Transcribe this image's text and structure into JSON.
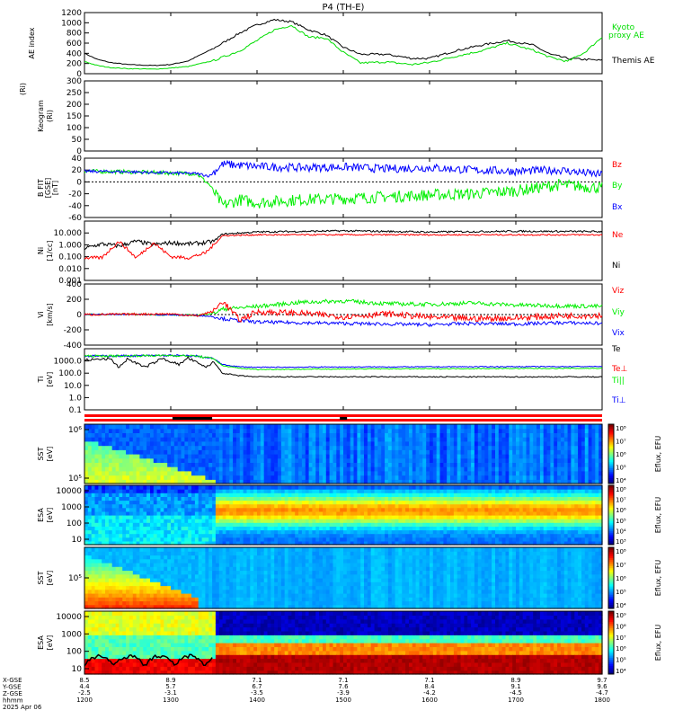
{
  "chart_data": {
    "type": "line",
    "title": "P4 (TH-E)",
    "x": {
      "tick_labels": [
        "1200",
        "1300",
        "1400",
        "1500",
        "1600",
        "1700",
        "1800"
      ],
      "ephemeris_labels": [
        "X-GSE",
        "Y-GSE",
        "Z-GSE",
        "hhmm",
        "2025 Apr 06"
      ],
      "xgse": [
        "8.5",
        "8.9",
        "7.1",
        "7.1",
        "7.1",
        "8.9",
        "9.7"
      ],
      "ygse": [
        "4.4",
        "5.7",
        "6.7",
        "7.6",
        "8.4",
        "9.1",
        "9.6"
      ],
      "zgse": [
        "-2.5",
        "-3.1",
        "-3.5",
        "-3.9",
        "-4.2",
        "-4.5",
        "-4.7"
      ]
    },
    "panels": [
      {
        "id": "ae",
        "ylabel": "AE index",
        "ylim": [
          0,
          1200
        ],
        "yticks": [
          "0",
          "200",
          "400",
          "600",
          "800",
          "1000",
          "1200"
        ],
        "series": [
          {
            "name": "Themis AE",
            "color": "#000000",
            "t": [
              0,
              0.15,
              0.3,
              0.5,
              0.8,
              1.0,
              1.2,
              1.5,
              1.8,
              2.0,
              2.2,
              2.4,
              2.6,
              2.8,
              3.0,
              3.2,
              3.5,
              3.8,
              4.0,
              4.3,
              4.6,
              4.9,
              5.2,
              5.4,
              5.6,
              5.8,
              6.0
            ],
            "values": [
              400,
              280,
              220,
              180,
              160,
              180,
              250,
              500,
              800,
              960,
              1060,
              1020,
              860,
              760,
              520,
              380,
              380,
              300,
              300,
              450,
              560,
              650,
              560,
              380,
              300,
              280,
              260
            ]
          },
          {
            "name": "Kyoto proxy AE",
            "color": "#00dd00",
            "t": [
              0,
              0.15,
              0.3,
              0.5,
              0.8,
              1.0,
              1.2,
              1.5,
              1.8,
              2.0,
              2.2,
              2.4,
              2.6,
              2.8,
              3.0,
              3.2,
              3.5,
              3.8,
              4.0,
              4.3,
              4.6,
              4.9,
              5.2,
              5.4,
              5.6,
              5.8,
              6.0
            ],
            "values": [
              240,
              160,
              120,
              100,
              90,
              110,
              140,
              260,
              450,
              650,
              860,
              950,
              720,
              700,
              420,
              210,
              230,
              180,
              220,
              340,
              450,
              600,
              460,
              320,
              240,
              420,
              720
            ]
          }
        ]
      },
      {
        "id": "keogram",
        "ylabel": "Keogram",
        "ylabel2": "(Ri)",
        "ylim": [
          0,
          300
        ],
        "yticks": [
          "0",
          "50",
          "100",
          "150",
          "200",
          "250",
          "300"
        ]
      },
      {
        "id": "bfield",
        "ylabel": "B FIT",
        "ylabel2": "[GSE]",
        "ylabel3": "[nT]",
        "ylim": [
          -60,
          40
        ],
        "yticks": [
          "-60",
          "-40",
          "-20",
          "0",
          "20",
          "40"
        ],
        "series": [
          {
            "name": "Bz",
            "color": "#ff0000",
            "t": [],
            "values": []
          },
          {
            "name": "By",
            "color": "#00ee00",
            "t": [
              0,
              0.5,
              1.0,
              1.3,
              1.45,
              1.6,
              1.8,
              2.0,
              2.5,
              3.0,
              3.5,
              4.0,
              4.5,
              5.0,
              5.5,
              6.0
            ],
            "values": [
              18,
              17,
              15,
              14,
              -5,
              -40,
              -30,
              -35,
              -30,
              -28,
              -25,
              -22,
              -20,
              -15,
              -5,
              -10
            ]
          },
          {
            "name": "Bx",
            "color": "#0000ff",
            "t": [
              0,
              0.5,
              1.0,
              1.3,
              1.45,
              1.6,
              1.8,
              2.0,
              2.5,
              3.0,
              3.5,
              4.0,
              4.5,
              5.0,
              5.5,
              6.0
            ],
            "values": [
              18,
              17,
              15,
              14,
              10,
              30,
              28,
              26,
              24,
              25,
              22,
              24,
              20,
              18,
              20,
              12
            ]
          }
        ]
      },
      {
        "id": "density",
        "ylabel": "Ni",
        "ylabel2": "[1/cc]",
        "ylim": [
          0.001,
          100
        ],
        "log": true,
        "yticks": [
          "0.001",
          "0.010",
          "0.100",
          "1.000",
          "10.000"
        ],
        "series": [
          {
            "name": "Ne",
            "color": "#ff0000",
            "t": [
              0,
              0.2,
              0.4,
              0.6,
              0.8,
              1.0,
              1.2,
              1.4,
              1.5,
              1.6,
              2.0,
              3.0,
              4.0,
              5.0,
              6.0
            ],
            "values": [
              0.08,
              0.08,
              2.0,
              0.08,
              1.5,
              0.1,
              0.08,
              0.2,
              1.0,
              6.0,
              7.0,
              7.0,
              7.0,
              7.0,
              7.0
            ]
          },
          {
            "name": "Ni",
            "color": "#000000",
            "t": [
              0,
              0.2,
              0.4,
              0.6,
              0.8,
              1.0,
              1.2,
              1.4,
              1.5,
              1.6,
              2.0,
              3.0,
              4.0,
              5.0,
              6.0
            ],
            "values": [
              0.5,
              1.2,
              0.8,
              2.0,
              1.0,
              1.5,
              1.2,
              1.5,
              2.0,
              8.0,
              12.0,
              15.0,
              12.0,
              14.0,
              13.0
            ]
          }
        ]
      },
      {
        "id": "velocity",
        "ylabel": "Vi",
        "ylabel2": "[km/s]",
        "ylim": [
          -450,
          450
        ],
        "yticks": [
          "-400",
          "-200",
          "0",
          "200",
          "400"
        ],
        "series": [
          {
            "name": "Viz",
            "color": "#ff0000",
            "t": [
              0,
              0.5,
              1.0,
              1.3,
              1.5,
              1.6,
              1.8,
              2.0,
              2.5,
              3.0,
              3.5,
              4.0,
              4.5,
              5.0,
              5.5,
              6.0
            ],
            "values": [
              0,
              5,
              10,
              -20,
              50,
              200,
              -80,
              40,
              20,
              -30,
              10,
              -40,
              -60,
              -50,
              -20,
              -10
            ]
          },
          {
            "name": "Viy",
            "color": "#00ee00",
            "t": [
              0,
              0.5,
              1.0,
              1.3,
              1.5,
              1.6,
              1.8,
              2.0,
              2.5,
              3.0,
              3.5,
              4.0,
              4.5,
              5.0,
              5.5,
              6.0
            ],
            "values": [
              0,
              5,
              -5,
              -10,
              20,
              80,
              100,
              120,
              180,
              200,
              160,
              150,
              170,
              140,
              130,
              120
            ]
          },
          {
            "name": "Vix",
            "color": "#0000ff",
            "t": [
              0,
              0.5,
              1.0,
              1.3,
              1.5,
              1.6,
              1.8,
              2.0,
              2.5,
              3.0,
              3.5,
              4.0,
              4.5,
              5.0,
              5.5,
              6.0
            ],
            "values": [
              0,
              5,
              -5,
              -10,
              -30,
              -60,
              -90,
              -110,
              -120,
              -130,
              -140,
              -150,
              -130,
              -140,
              -120,
              -130
            ]
          }
        ]
      },
      {
        "id": "temperature",
        "ylabel": "Ti",
        "ylabel2": "[eV]",
        "ylim": [
          0.1,
          10000
        ],
        "log": true,
        "yticks": [
          "0.1",
          "1.0",
          "10.0",
          "100.0",
          "1000.0"
        ],
        "series": [
          {
            "name": "Te",
            "color": "#000000",
            "t": [
              0,
              0.3,
              0.4,
              0.5,
              0.7,
              0.9,
              1.1,
              1.2,
              1.4,
              1.5,
              1.6,
              1.8,
              2.0,
              3.0,
              4.0,
              5.0,
              6.0
            ],
            "values": [
              1200,
              1500,
              300,
              1500,
              300,
              1600,
              500,
              1800,
              300,
              800,
              100,
              60,
              50,
              50,
              50,
              50,
              50
            ]
          },
          {
            "name": "Te⊥",
            "color": "#ff0000",
            "t": [],
            "values": []
          },
          {
            "name": "Ti||",
            "color": "#00ee00",
            "t": [
              0,
              0.5,
              1.0,
              1.3,
              1.5,
              1.6,
              1.8,
              2.0,
              3.0,
              4.0,
              5.0,
              6.0
            ],
            "values": [
              2500,
              2600,
              2800,
              2500,
              1500,
              400,
              250,
              200,
              220,
              230,
              240,
              250
            ]
          },
          {
            "name": "Ti⊥",
            "color": "#0000ff",
            "t": [
              0,
              0.5,
              1.0,
              1.3,
              1.5,
              1.6,
              1.8,
              2.0,
              3.0,
              4.0,
              5.0,
              6.0
            ],
            "values": [
              2500,
              2600,
              2800,
              2500,
              1500,
              500,
              330,
              300,
              320,
              330,
              340,
              350
            ]
          }
        ]
      },
      {
        "id": "sst_ion",
        "type": "heatmap",
        "ylabel": "SST",
        "ylabel2": "[eV]",
        "yticks": [
          "10⁵",
          "10⁶"
        ],
        "colorbar_label": "Eflux, EFU",
        "colorbar_ticks": [
          "10⁴",
          "10⁵",
          "10⁶",
          "10⁷",
          "10⁸"
        ]
      },
      {
        "id": "esa_ion",
        "type": "heatmap",
        "ylabel": "ESA",
        "ylabel2": "[eV]",
        "yticks": [
          "10",
          "100",
          "1000",
          "10000"
        ],
        "colorbar_label": "Eflux, EFU",
        "colorbar_ticks": [
          "10³",
          "10⁴",
          "10⁵",
          "10⁶",
          "10⁷",
          "10⁸"
        ]
      },
      {
        "id": "sst_elec",
        "type": "heatmap",
        "ylabel": "SST",
        "ylabel2": "[eV]",
        "yticks": [
          "10⁵"
        ],
        "colorbar_label": "Eflux, EFU",
        "colorbar_ticks": [
          "10⁴",
          "10⁵",
          "10⁶",
          "10⁷",
          "10⁸"
        ]
      },
      {
        "id": "esa_elec",
        "type": "heatmap",
        "ylabel": "ESA",
        "ylabel2": "[eV]",
        "yticks": [
          "10",
          "100",
          "1000",
          "10000"
        ],
        "colorbar_label": "Eflux, EFU",
        "colorbar_ticks": [
          "10⁴",
          "10⁵",
          "10⁶",
          "10⁷",
          "10⁸",
          "10⁹"
        ]
      }
    ]
  }
}
